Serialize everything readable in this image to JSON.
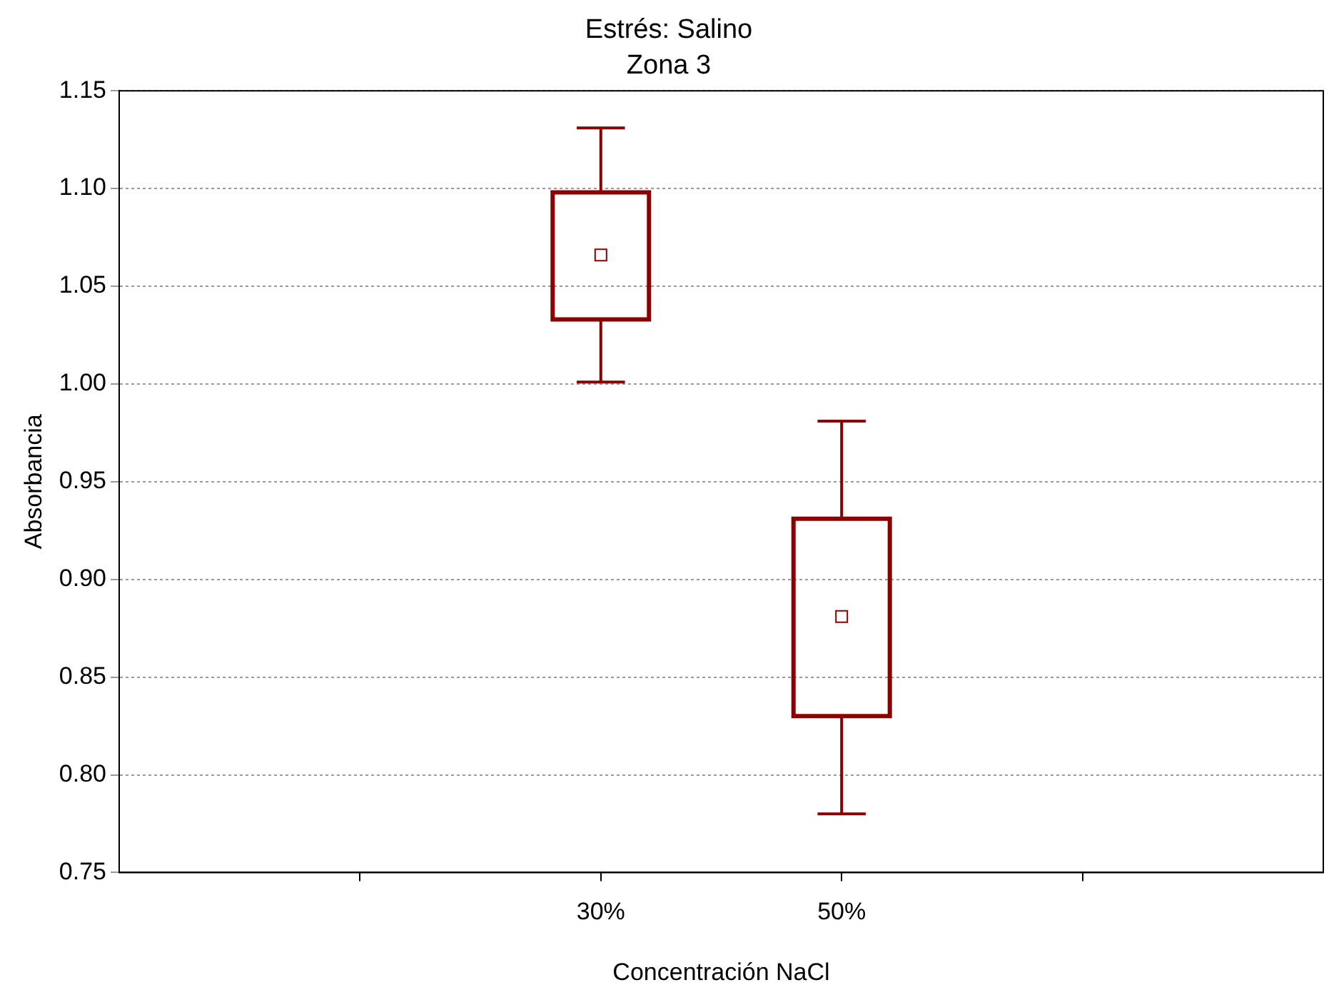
{
  "chart_data": {
    "type": "box",
    "title": "Estrés: Salino",
    "subtitle": "Zona 3",
    "xlabel": "Concentración NaCl",
    "ylabel": "Absorbancia",
    "categories": [
      null,
      "30%",
      "50%",
      null
    ],
    "series": [
      {
        "color": "#8b0000",
        "boxes": [
          null,
          {
            "low": 1.001,
            "q1": 1.033,
            "median": 1.066,
            "q3": 1.098,
            "high": 1.131
          },
          {
            "low": 0.78,
            "q1": 0.83,
            "median": 0.881,
            "q3": 0.931,
            "high": 0.981
          },
          null
        ]
      }
    ],
    "ylim": [
      0.75,
      1.15
    ],
    "yticks": [
      {
        "value": 0.75,
        "label": "0.75"
      },
      {
        "value": 0.8,
        "label": "0.80"
      },
      {
        "value": 0.85,
        "label": "0.85"
      },
      {
        "value": 0.9,
        "label": "0.90"
      },
      {
        "value": 0.95,
        "label": "0.95"
      },
      {
        "value": 1.0,
        "label": "1.00"
      },
      {
        "value": 1.05,
        "label": "1.05"
      },
      {
        "value": 1.1,
        "label": "1.10"
      },
      {
        "value": 1.15,
        "label": "1.15"
      }
    ],
    "grid": "y",
    "legend": false
  }
}
